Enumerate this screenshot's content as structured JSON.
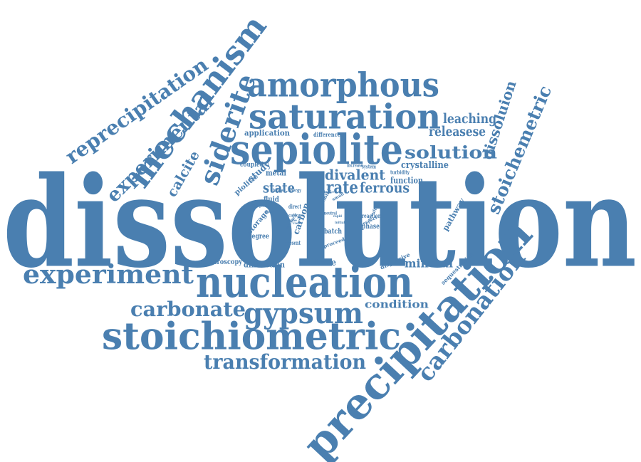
{
  "colors": {
    "word": "#4a7fb0",
    "background": "#ffffff"
  },
  "words": [
    {
      "id": "dissolution",
      "text": "dissolution"
    },
    {
      "id": "precipitation",
      "text": "precipitation"
    },
    {
      "id": "nucleation",
      "text": "nucleation"
    },
    {
      "id": "stoichiometric",
      "text": "stoichiometric"
    },
    {
      "id": "sepiolite",
      "text": "sepiolite"
    },
    {
      "id": "amorphous",
      "text": "amorphous"
    },
    {
      "id": "saturation",
      "text": "saturation"
    },
    {
      "id": "mechanism",
      "text": "mechanism"
    },
    {
      "id": "siderite",
      "text": "siderite"
    },
    {
      "id": "reprecipitation",
      "text": "reprecipitation"
    },
    {
      "id": "experimental",
      "text": "experimental"
    },
    {
      "id": "experiment",
      "text": "experiment"
    },
    {
      "id": "gypsum",
      "text": "gypsum"
    },
    {
      "id": "carbonate",
      "text": "carbonate"
    },
    {
      "id": "transformation",
      "text": "transformation"
    },
    {
      "id": "carbonation",
      "text": "carbonation"
    },
    {
      "id": "stoichemetric",
      "text": "stoichemetric"
    },
    {
      "id": "dissoluion",
      "text": "dissoluion"
    },
    {
      "id": "solution",
      "text": "solution"
    },
    {
      "id": "leaching",
      "text": "leaching"
    },
    {
      "id": "releasese",
      "text": "releasese"
    },
    {
      "id": "calcite",
      "text": "calcite"
    },
    {
      "id": "divalent",
      "text": "divalent"
    },
    {
      "id": "rate",
      "text": "rate"
    },
    {
      "id": "ferrous",
      "text": "ferrous"
    },
    {
      "id": "state",
      "text": "state"
    },
    {
      "id": "crystalline",
      "text": "crystalline"
    },
    {
      "id": "function",
      "text": "function"
    },
    {
      "id": "mineral",
      "text": "mineral"
    },
    {
      "id": "condition",
      "text": "condition"
    },
    {
      "id": "citrate",
      "text": "citrate"
    },
    {
      "id": "diffraction",
      "text": "diffraction"
    },
    {
      "id": "spectroscopy",
      "text": "spectroscopy"
    },
    {
      "id": "application",
      "text": "application"
    },
    {
      "id": "difference",
      "text": "difference"
    },
    {
      "id": "metal",
      "text": "metal"
    },
    {
      "id": "fluid",
      "text": "fluid"
    },
    {
      "id": "study",
      "text": "study"
    },
    {
      "id": "piolitic",
      "text": "piolitic"
    },
    {
      "id": "coupled",
      "text": "coupled"
    },
    {
      "id": "storage",
      "text": "storage"
    },
    {
      "id": "degree",
      "text": "degree"
    },
    {
      "id": "carbon",
      "text": "carbon"
    },
    {
      "id": "batch",
      "text": "batch"
    },
    {
      "id": "phase",
      "text": "phase"
    },
    {
      "id": "reaction",
      "text": "reaction"
    },
    {
      "id": "pathway",
      "text": "pathway"
    },
    {
      "id": "sequestration",
      "text": "sequestration"
    },
    {
      "id": "dispersive",
      "text": "dispersive"
    },
    {
      "id": "proceed",
      "text": "proceed"
    },
    {
      "id": "present",
      "text": "present"
    },
    {
      "id": "isotopic",
      "text": "isotopic"
    },
    {
      "id": "direct",
      "text": "direct"
    },
    {
      "id": "increase",
      "text": "increase"
    },
    {
      "id": "system",
      "text": "system"
    },
    {
      "id": "turbidity",
      "text": "turbidity"
    },
    {
      "id": "higher",
      "text": "higher"
    },
    {
      "id": "energy",
      "text": "energy"
    },
    {
      "id": "cation",
      "text": "cation"
    },
    {
      "id": "surface",
      "text": "surface"
    },
    {
      "id": "neutral",
      "text": "neutral"
    },
    {
      "id": "respect",
      "text": "respect"
    },
    {
      "id": "initial",
      "text": "initial"
    },
    {
      "id": "rapid",
      "text": "rapid"
    },
    {
      "id": "solid",
      "text": "solid"
    },
    {
      "id": "small",
      "text": "small"
    },
    {
      "id": "indice",
      "text": "indice"
    },
    {
      "id": "result",
      "text": "result"
    },
    {
      "id": "zone",
      "text": "zone"
    },
    {
      "id": "made",
      "text": "made"
    },
    {
      "id": "case",
      "text": "case"
    }
  ]
}
